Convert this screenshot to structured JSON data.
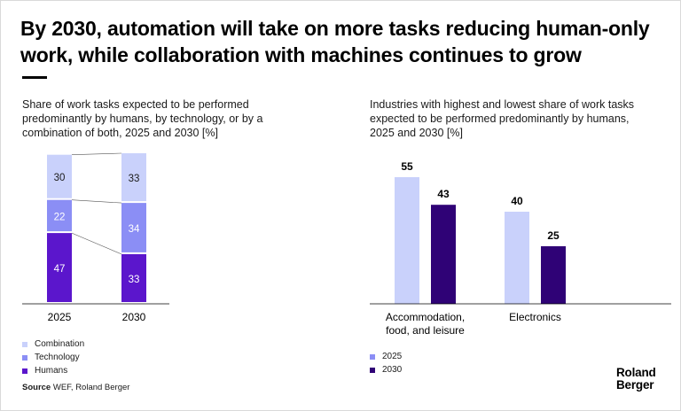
{
  "header": {
    "title": "By 2030, automation will take on more tasks reducing human-only work, while collaboration with machines continues to grow"
  },
  "colors": {
    "combination": "#c9d1fb",
    "technology": "#8b8ef5",
    "humans": "#5b16cc",
    "y2025": "#c9d1fb",
    "y2030": "#2f0276"
  },
  "left_panel": {
    "subtitle": "Share of work tasks expected to be performed predominantly by humans, by technology, or by a combination of both, 2025 and 2030 [%]",
    "legend": [
      "Combination",
      "Technology",
      "Humans"
    ]
  },
  "right_panel": {
    "subtitle": "Industries with highest and lowest share of work tasks expected to be performed predominantly by humans, 2025 and 2030 [%]",
    "legend": [
      "2025",
      "2030"
    ]
  },
  "source": {
    "label": "Source",
    "text": "WEF, Roland Berger"
  },
  "logo": {
    "line1": "Roland",
    "line2": "Berger"
  },
  "chart_data": [
    {
      "type": "bar",
      "stacked": true,
      "categories": [
        "2025",
        "2030"
      ],
      "series": [
        {
          "name": "Humans",
          "values": [
            47,
            33
          ]
        },
        {
          "name": "Technology",
          "values": [
            22,
            34
          ]
        },
        {
          "name": "Combination",
          "values": [
            30,
            33
          ]
        }
      ],
      "legend_position": "bottom-left",
      "grid": false
    },
    {
      "type": "bar",
      "categories": [
        "Accommodation, food, and leisure",
        "Electronics"
      ],
      "category_lines": [
        [
          "Accommodation,",
          "food, and leisure"
        ],
        [
          "Electronics"
        ]
      ],
      "series": [
        {
          "name": "2025",
          "values": [
            55,
            40
          ]
        },
        {
          "name": "2030",
          "values": [
            43,
            25
          ]
        }
      ],
      "legend_position": "bottom-left",
      "grid": false
    }
  ]
}
